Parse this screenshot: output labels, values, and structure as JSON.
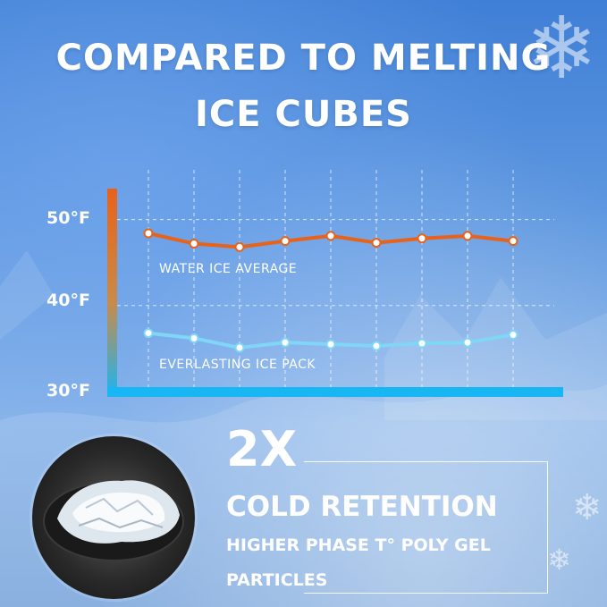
{
  "headline": {
    "line1": "COMPARED TO MELTING",
    "line2": "ICE CUBES"
  },
  "chart_data": {
    "type": "line",
    "title": "",
    "xlabel": "",
    "ylabel": "",
    "y_ticks": [
      "50°F",
      "40°F",
      "30°F"
    ],
    "ylim": [
      30,
      52
    ],
    "x": [
      1,
      2,
      3,
      4,
      5,
      6,
      7,
      8,
      9
    ],
    "grid": true,
    "series": [
      {
        "name": "WATER ICE AVERAGE",
        "color": "#e8621a",
        "values": [
          48.4,
          47.2,
          46.8,
          47.5,
          48.1,
          47.3,
          47.8,
          48.1,
          47.5
        ]
      },
      {
        "name": "EVERLASTING ICE PACK",
        "color": "#7fd6f6",
        "values": [
          36.8,
          36.2,
          35.1,
          35.7,
          35.5,
          35.3,
          35.6,
          35.7,
          36.6
        ]
      }
    ],
    "colors": {
      "axis_top": "#e8621a",
      "axis_bottom": "#19b6f4",
      "grid": "#ffffff"
    }
  },
  "promo": {
    "big": "2X",
    "headline": "COLD RETENTION",
    "sub_line1": "HIGHER PHASE T° POLY GEL",
    "sub_line2": "PARTICLES"
  },
  "icons": {
    "snowflake": "snowflake-icon",
    "photo": "ice-gel-photo"
  }
}
